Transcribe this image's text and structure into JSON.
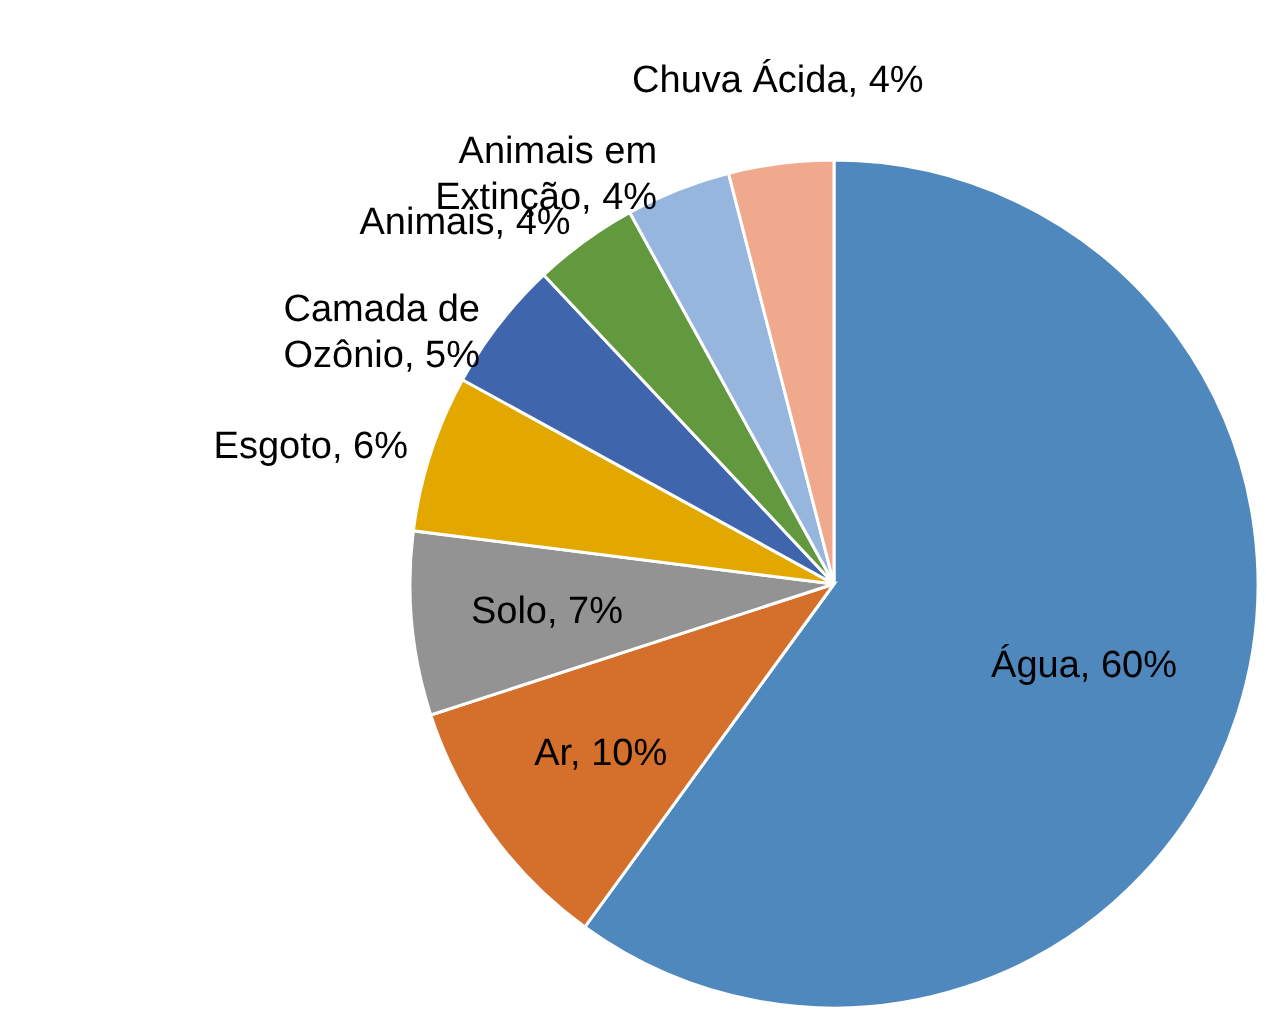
{
  "chart_data": {
    "type": "pie",
    "categories": [
      "Água",
      "Ar",
      "Solo",
      "Esgoto",
      "Camada de Ozônio",
      "Animais",
      "Animais em Extinção",
      "Chuva Ácida"
    ],
    "values": [
      60,
      10,
      7,
      6,
      5,
      4,
      4,
      4
    ],
    "colors": [
      "#4e88bc",
      "#d4702c",
      "#939393",
      "#e3a800",
      "#3f66ad",
      "#62993f",
      "#96b6dd",
      "#f0a98c"
    ],
    "value_labels": [
      "60%",
      "10%",
      "7%",
      "6%",
      "5%",
      "4%",
      "4%",
      "4%"
    ]
  }
}
